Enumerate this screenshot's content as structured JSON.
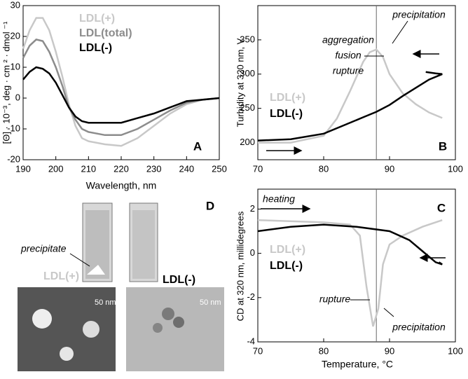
{
  "chart_data": [
    {
      "type": "line",
      "panel_label": "A",
      "xlabel": "Wavelength, nm",
      "ylabel": "[Θ] · 10⁻³, deg · cm ² · dmol ⁻¹",
      "xlim": [
        190,
        250
      ],
      "ylim": [
        -20,
        30
      ],
      "xticks": [
        190,
        200,
        210,
        220,
        230,
        240,
        250
      ],
      "yticks": [
        -20,
        -10,
        0,
        10,
        20,
        30
      ],
      "series": [
        {
          "name": "LDL(+)",
          "color": "#c8c8c8",
          "x": [
            190,
            192,
            194,
            196,
            198,
            200,
            202,
            204,
            206,
            208,
            210,
            215,
            220,
            225,
            230,
            235,
            240,
            245,
            250
          ],
          "values": [
            16,
            22,
            26,
            26,
            22,
            15,
            7,
            -2,
            -9,
            -13,
            -14,
            -15,
            -15.5,
            -13,
            -9,
            -5,
            -2,
            -0.5,
            0
          ]
        },
        {
          "name": "LDL(total)",
          "color": "#8c8c8c",
          "x": [
            190,
            192,
            194,
            196,
            198,
            200,
            202,
            204,
            206,
            208,
            210,
            215,
            220,
            225,
            230,
            235,
            240,
            245,
            250
          ],
          "values": [
            13,
            17,
            19,
            18.5,
            15,
            10,
            4,
            -3,
            -7,
            -10,
            -11,
            -12,
            -12,
            -10,
            -7,
            -4,
            -1.5,
            -0.5,
            0
          ]
        },
        {
          "name": "LDL(-)",
          "color": "#000000",
          "x": [
            190,
            192,
            194,
            196,
            198,
            200,
            202,
            204,
            206,
            208,
            210,
            215,
            220,
            225,
            230,
            235,
            240,
            245,
            250
          ],
          "values": [
            6,
            8.5,
            10,
            9.5,
            8,
            5,
            1,
            -3,
            -6,
            -7.5,
            -8,
            -8,
            -8,
            -6.5,
            -5,
            -3,
            -1,
            -0.5,
            0
          ]
        }
      ]
    },
    {
      "type": "line",
      "panel_label": "B",
      "ylabel": "Turbidity at 320 nm, V",
      "xlim": [
        70,
        100
      ],
      "ylim": [
        175,
        400
      ],
      "xticks": [
        70,
        80,
        90,
        100
      ],
      "yticks": [
        200,
        250,
        300,
        350
      ],
      "vline": 88,
      "annotations": [
        "precipitation",
        "aggregation",
        "fusion",
        "rupture"
      ],
      "series": [
        {
          "name": "LDL(+)",
          "color": "#c8c8c8",
          "x": [
            70,
            75,
            80,
            82,
            84,
            86,
            87,
            88,
            89,
            90,
            92,
            94,
            96,
            98
          ],
          "values": [
            200,
            200,
            210,
            235,
            275,
            318,
            332,
            336,
            325,
            300,
            272,
            256,
            244,
            236
          ]
        },
        {
          "name": "LDL(-)",
          "color": "#000000",
          "x": [
            70,
            75,
            80,
            83,
            86,
            88,
            90,
            92,
            94,
            96,
            98,
            97,
            95.5
          ],
          "values": [
            203,
            205,
            213,
            225,
            237,
            245,
            255,
            268,
            280,
            292,
            300,
            301,
            303
          ]
        }
      ]
    },
    {
      "type": "line",
      "panel_label": "C",
      "xlabel": "Temperature, °C",
      "ylabel": "CD at 320 nm, millidegrees",
      "xlim": [
        70,
        100
      ],
      "ylim": [
        -4,
        2.9
      ],
      "xticks": [
        70,
        80,
        90,
        100
      ],
      "yticks": [
        -4,
        -2,
        0,
        2
      ],
      "vline": 88,
      "annotations": [
        "heating",
        "rupture",
        "precipitation"
      ],
      "series": [
        {
          "name": "LDL(+)",
          "color": "#c8c8c8",
          "x": [
            70,
            80,
            84,
            85.5,
            86.5,
            87.5,
            88.3,
            89,
            90,
            92,
            95,
            98
          ],
          "values": [
            1.5,
            1.4,
            1.3,
            0.8,
            -1.5,
            -3.3,
            -2.5,
            -0.5,
            0.4,
            0.8,
            1.2,
            1.5
          ]
        },
        {
          "name": "LDL(-)",
          "color": "#000000",
          "x": [
            70,
            75,
            80,
            85,
            90,
            93,
            95,
            97,
            98,
            97.5
          ],
          "values": [
            1.0,
            1.2,
            1.3,
            1.2,
            1.0,
            0.6,
            0.1,
            -0.4,
            -0.5,
            -0.4
          ]
        }
      ]
    }
  ],
  "panel_d": {
    "label": "D",
    "precipitate": "precipitate",
    "left_name": "LDL(+)",
    "right_name": "LDL(-)",
    "scale_left": "50 nm",
    "scale_right": "50 nm"
  }
}
